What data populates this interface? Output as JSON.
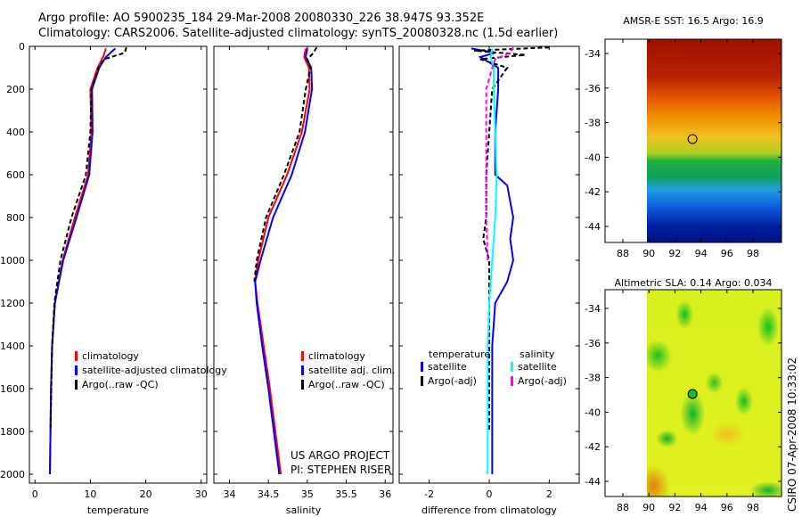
{
  "title_line1": "Argo profile: AO 5900235_184 29-Mar-2008 20080330_226 38.947S 93.352E",
  "title_line2": "Climatology: CARS2006. Satellite-adjusted climatology: synTS_20080328.nc (1.5d earlier)",
  "credit": "US ARGO PROJECT",
  "pi": "PI: STEPHEN RISER",
  "stamp": "CSIRO 07-Apr-2008 10:33:02",
  "colors": {
    "climatology": "#ff0000",
    "satellite": "#0000ff",
    "argo": "#000000",
    "sal_satellite": "#00ffff",
    "sal_argo": "#ff00ff"
  },
  "chart_data": [
    {
      "type": "line",
      "xlabel": "temperature",
      "xlim": [
        -1,
        31
      ],
      "ylim": [
        2050,
        0
      ],
      "xticks": [
        0,
        10,
        20,
        30
      ],
      "yticks": [
        0,
        200,
        400,
        600,
        800,
        1000,
        1200,
        1400,
        1600,
        1800,
        2000
      ],
      "legend": [
        "climatology",
        "satellite-adjusted climatology",
        "Argo(..raw -QC)"
      ],
      "series": [
        {
          "name": "climatology",
          "color": "#ff0000",
          "depth": [
            10,
            50,
            100,
            200,
            400,
            600,
            800,
            1000,
            1200,
            1400,
            1600,
            1800,
            2000
          ],
          "values": [
            12.8,
            12.3,
            11.3,
            10.0,
            10.2,
            9.6,
            7.2,
            5.0,
            3.6,
            3.1,
            2.9,
            2.8,
            2.7
          ]
        },
        {
          "name": "satellite-adjusted climatology",
          "color": "#0000ff",
          "depth": [
            10,
            50,
            100,
            200,
            400,
            600,
            800,
            1000,
            1200,
            1400,
            1600,
            1800,
            2000
          ],
          "values": [
            14.5,
            12.8,
            11.6,
            10.3,
            10.4,
            9.8,
            7.5,
            5.1,
            3.6,
            3.1,
            2.9,
            2.8,
            2.7
          ]
        },
        {
          "name": "Argo(..raw -QC)",
          "color": "#000000",
          "dash": true,
          "depth": [
            5,
            30,
            60,
            100,
            200,
            400,
            600,
            800,
            1000,
            1200,
            1400,
            1800
          ],
          "values": [
            16.5,
            16.2,
            12.5,
            11.5,
            10.2,
            10.0,
            9.2,
            6.6,
            4.6,
            3.5,
            3.1,
            2.8
          ]
        }
      ]
    },
    {
      "type": "line",
      "xlabel": "salinity",
      "xlim": [
        33.8,
        36.1
      ],
      "ylim": [
        2050,
        0
      ],
      "xticks": [
        34,
        34.5,
        35,
        35.5,
        36
      ],
      "legend": [
        "climatology",
        "satellite adj. clim.",
        "Argo(..raw -QC)"
      ],
      "series": [
        {
          "name": "climatology",
          "color": "#ff0000",
          "depth": [
            10,
            50,
            100,
            200,
            400,
            600,
            800,
            1000,
            1100,
            1200,
            1400,
            1600,
            1800,
            2000
          ],
          "values": [
            34.98,
            34.96,
            35.02,
            35.03,
            34.93,
            34.74,
            34.5,
            34.37,
            34.33,
            34.36,
            34.44,
            34.52,
            34.59,
            34.66
          ]
        },
        {
          "name": "satellite adj. clim.",
          "color": "#0000ff",
          "depth": [
            10,
            50,
            100,
            200,
            400,
            600,
            800,
            1000,
            1100,
            1200,
            1400,
            1600,
            1800,
            2000
          ],
          "values": [
            35.0,
            34.98,
            35.05,
            35.06,
            34.97,
            34.8,
            34.56,
            34.4,
            34.33,
            34.35,
            34.42,
            34.5,
            34.57,
            34.64
          ]
        },
        {
          "name": "Argo(..raw -QC)",
          "color": "#000000",
          "dash": true,
          "depth": [
            5,
            30,
            60,
            100,
            200,
            400,
            600,
            800,
            1000,
            1100
          ],
          "values": [
            35.12,
            35.08,
            35.0,
            35.04,
            34.98,
            34.9,
            34.7,
            34.47,
            34.35,
            34.32
          ]
        }
      ]
    },
    {
      "type": "line",
      "xlabel": "difference from climatology",
      "xlim": [
        -3,
        3
      ],
      "ylim": [
        2050,
        0
      ],
      "xticks": [
        -2,
        0,
        2
      ],
      "legend_headers": [
        "temperature",
        "salinity"
      ],
      "legend": [
        "satellite",
        "Argo(-adj)",
        "satellite",
        "Argo(-adj)"
      ],
      "series": [
        {
          "name": "temperature satellite",
          "color": "#0000ff",
          "depth": [
            10,
            30,
            50,
            100,
            200,
            400,
            600,
            650,
            800,
            900,
            1000,
            1100,
            1200,
            1400,
            1600,
            1800,
            2000
          ],
          "values": [
            -0.6,
            0.2,
            -0.3,
            0.3,
            0.3,
            0.2,
            0.2,
            0.6,
            0.8,
            0.7,
            0.8,
            0.6,
            0.2,
            0.1,
            0.1,
            0.1,
            0.1
          ]
        },
        {
          "name": "temperature Argo(-adj)",
          "color": "#000000",
          "dash": true,
          "depth": [
            5,
            20,
            40,
            60,
            100,
            200,
            400,
            600,
            800,
            900,
            1000,
            1200,
            1400,
            1800
          ],
          "values": [
            2.0,
            -0.5,
            1.2,
            -0.3,
            0.6,
            0.1,
            0.0,
            -0.1,
            -0.1,
            -0.2,
            0.0,
            0.0,
            0.0,
            0.0
          ]
        },
        {
          "name": "salinity satellite",
          "color": "#00ffff",
          "depth": [
            10,
            50,
            100,
            200,
            400,
            600,
            800,
            1000,
            1200,
            1400,
            1600,
            1800,
            2000
          ],
          "values": [
            0.1,
            0.05,
            0.15,
            0.15,
            0.2,
            0.25,
            0.2,
            0.1,
            0.0,
            -0.05,
            -0.05,
            -0.05,
            -0.05
          ]
        },
        {
          "name": "salinity Argo(-adj)",
          "color": "#ff00ff",
          "dash": true,
          "depth": [
            5,
            30,
            60,
            100,
            200,
            400,
            600,
            800,
            1000
          ],
          "values": [
            0.8,
            0.7,
            0.2,
            0.1,
            -0.1,
            -0.1,
            -0.1,
            -0.1,
            -0.05
          ]
        }
      ]
    },
    {
      "type": "heatmap",
      "title": "AMSR-E SST: 16.5 Argo: 16.9",
      "xticks": [
        88,
        90,
        92,
        94,
        96,
        98
      ],
      "yticks": [
        -34,
        -36,
        -38,
        -40,
        -42,
        -44
      ],
      "argo_position": [
        93.352,
        -38.947
      ]
    },
    {
      "type": "heatmap",
      "title": "Altimetric SLA: 0.14 Argo: 0.034",
      "xticks": [
        88,
        90,
        92,
        94,
        96,
        98
      ],
      "yticks": [
        -34,
        -36,
        -38,
        -40,
        -42,
        -44
      ],
      "argo_position": [
        93.352,
        -38.947
      ]
    }
  ]
}
